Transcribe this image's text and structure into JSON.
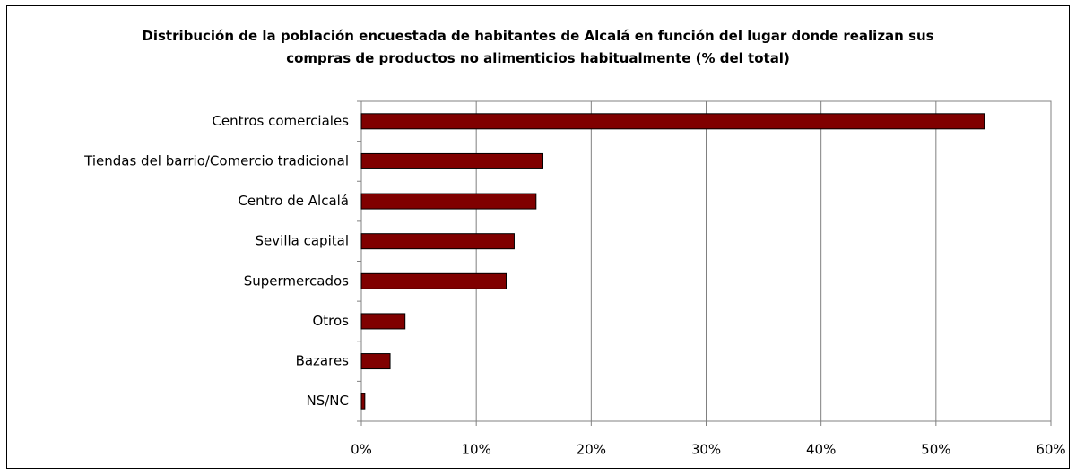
{
  "chart_data": {
    "type": "bar",
    "orientation": "horizontal",
    "title": "Distribución de la población encuestada de habitantes de Alcalá en función del lugar donde realizan sus compras de productos no alimenticios habitualmente (% del total)",
    "categories": [
      "Centros comerciales",
      "Tiendas del barrio/Comercio tradicional",
      "Centro de Alcalá",
      "Sevilla capital",
      "Supermercados",
      "Otros",
      "Bazares",
      "NS/NC"
    ],
    "values": [
      54.2,
      15.8,
      15.2,
      13.3,
      12.6,
      3.8,
      2.5,
      0.3
    ],
    "color": "#800000",
    "xlim": [
      0,
      60
    ],
    "xticks": [
      {
        "value": 0,
        "label": "0%"
      },
      {
        "value": 10,
        "label": "10%"
      },
      {
        "value": 20,
        "label": "20%"
      },
      {
        "value": 30,
        "label": "30%"
      },
      {
        "value": 40,
        "label": "40%"
      },
      {
        "value": 50,
        "label": "50%"
      },
      {
        "value": 60,
        "label": "60%"
      }
    ],
    "grid": true
  }
}
